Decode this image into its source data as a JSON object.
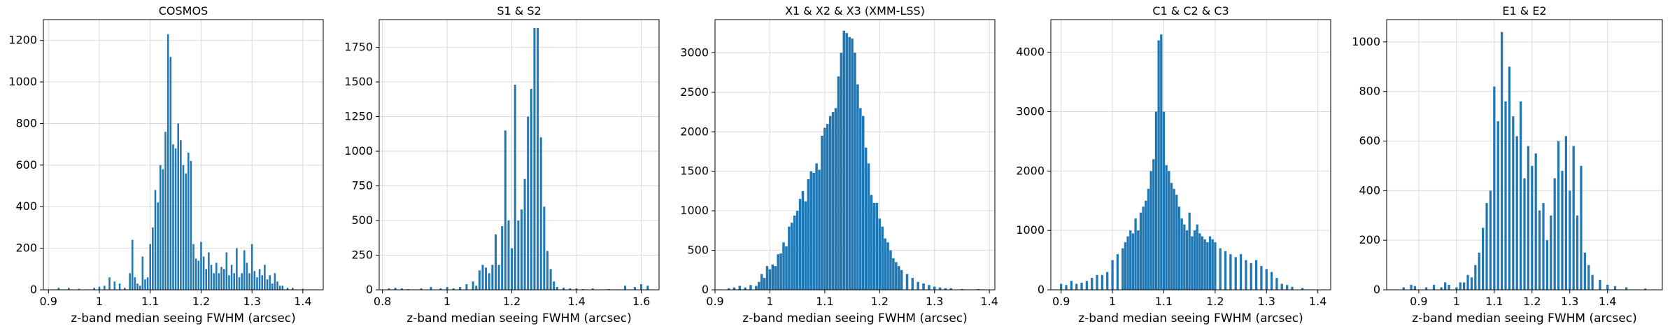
{
  "colors": {
    "bar": "#1f77b4",
    "grid": "#d9d9d9",
    "axis": "#000000"
  },
  "chart_data": [
    {
      "type": "bar",
      "title": "COSMOS",
      "xlabel": "z-band median seeing FWHM (arcsec)",
      "ylabel": "",
      "grid": true,
      "xlim": [
        0.89,
        1.44
      ],
      "ylim": [
        0,
        1300
      ],
      "xticks": [
        0.9,
        1.0,
        1.1,
        1.2,
        1.3,
        1.4
      ],
      "yticks": [
        0,
        200,
        400,
        600,
        800,
        1000,
        1200
      ],
      "bin_width": 0.0035,
      "x": [
        0.92,
        0.94,
        0.96,
        0.99,
        1.0,
        1.01,
        1.02,
        1.03,
        1.04,
        1.05,
        1.06,
        1.065,
        1.07,
        1.075,
        1.08,
        1.085,
        1.09,
        1.095,
        1.1,
        1.105,
        1.11,
        1.115,
        1.12,
        1.125,
        1.13,
        1.135,
        1.14,
        1.145,
        1.15,
        1.155,
        1.16,
        1.165,
        1.17,
        1.175,
        1.18,
        1.185,
        1.19,
        1.195,
        1.2,
        1.205,
        1.21,
        1.215,
        1.22,
        1.225,
        1.23,
        1.235,
        1.24,
        1.245,
        1.25,
        1.255,
        1.26,
        1.265,
        1.27,
        1.275,
        1.28,
        1.285,
        1.29,
        1.295,
        1.3,
        1.305,
        1.31,
        1.315,
        1.32,
        1.325,
        1.33,
        1.335,
        1.34,
        1.345,
        1.35,
        1.355,
        1.36,
        1.37,
        1.38,
        1.4
      ],
      "values": [
        10,
        10,
        5,
        10,
        15,
        20,
        60,
        40,
        30,
        10,
        80,
        240,
        60,
        30,
        20,
        160,
        50,
        60,
        220,
        300,
        480,
        420,
        600,
        580,
        760,
        1230,
        1120,
        700,
        680,
        800,
        720,
        600,
        560,
        660,
        620,
        220,
        150,
        140,
        230,
        160,
        100,
        180,
        120,
        80,
        130,
        80,
        110,
        100,
        180,
        70,
        120,
        80,
        200,
        60,
        80,
        190,
        130,
        80,
        220,
        90,
        60,
        100,
        70,
        120,
        50,
        70,
        30,
        80,
        40,
        20,
        20,
        10,
        10,
        5
      ]
    },
    {
      "type": "bar",
      "title": "S1 & S2",
      "xlabel": "z-band median seeing FWHM (arcsec)",
      "ylabel": "",
      "grid": true,
      "xlim": [
        0.79,
        1.655
      ],
      "ylim": [
        0,
        1950
      ],
      "xticks": [
        0.8,
        1.0,
        1.2,
        1.4,
        1.6
      ],
      "yticks": [
        0,
        250,
        500,
        750,
        1000,
        1250,
        1500,
        1750
      ],
      "bin_width": 0.0065,
      "x": [
        0.82,
        0.84,
        0.86,
        0.88,
        0.92,
        0.95,
        0.98,
        1.0,
        1.02,
        1.04,
        1.06,
        1.08,
        1.09,
        1.1,
        1.11,
        1.12,
        1.13,
        1.14,
        1.15,
        1.16,
        1.17,
        1.18,
        1.19,
        1.2,
        1.21,
        1.22,
        1.23,
        1.24,
        1.25,
        1.26,
        1.27,
        1.28,
        1.29,
        1.3,
        1.31,
        1.32,
        1.33,
        1.34,
        1.36,
        1.38,
        1.4,
        1.42,
        1.45,
        1.5,
        1.55,
        1.58,
        1.6,
        1.62
      ],
      "values": [
        10,
        15,
        10,
        5,
        10,
        20,
        10,
        20,
        10,
        20,
        40,
        60,
        30,
        140,
        180,
        160,
        120,
        180,
        400,
        180,
        460,
        1150,
        500,
        300,
        1480,
        500,
        580,
        800,
        1250,
        1450,
        1890,
        1890,
        1100,
        600,
        280,
        150,
        60,
        20,
        15,
        10,
        10,
        5,
        10,
        5,
        30,
        20,
        40,
        30
      ]
    },
    {
      "type": "bar",
      "title": "X1 & X2 & X3 (XMM-LSS)",
      "xlabel": "z-band median seeing FWHM (arcsec)",
      "ylabel": "",
      "grid": true,
      "xlim": [
        0.9,
        1.41
      ],
      "ylim": [
        0,
        3420
      ],
      "xticks": [
        0.9,
        1.0,
        1.1,
        1.2,
        1.3,
        1.4
      ],
      "yticks": [
        0,
        500,
        1000,
        1500,
        2000,
        2500,
        3000
      ],
      "bin_width": 0.0045,
      "x": [
        0.925,
        0.935,
        0.945,
        0.955,
        0.965,
        0.975,
        0.98,
        0.985,
        0.99,
        0.995,
        1.0,
        1.005,
        1.01,
        1.015,
        1.02,
        1.025,
        1.03,
        1.035,
        1.04,
        1.045,
        1.05,
        1.055,
        1.06,
        1.065,
        1.07,
        1.075,
        1.08,
        1.085,
        1.09,
        1.095,
        1.1,
        1.105,
        1.11,
        1.115,
        1.12,
        1.125,
        1.13,
        1.135,
        1.14,
        1.145,
        1.15,
        1.155,
        1.16,
        1.165,
        1.17,
        1.175,
        1.18,
        1.185,
        1.19,
        1.195,
        1.2,
        1.205,
        1.21,
        1.215,
        1.22,
        1.225,
        1.23,
        1.235,
        1.24,
        1.25,
        1.26,
        1.27,
        1.28,
        1.29,
        1.3,
        1.31,
        1.32,
        1.33,
        1.35,
        1.38
      ],
      "values": [
        20,
        30,
        50,
        30,
        60,
        50,
        100,
        200,
        150,
        300,
        260,
        320,
        300,
        450,
        460,
        600,
        550,
        800,
        850,
        940,
        1000,
        1150,
        1250,
        1120,
        1400,
        1500,
        1480,
        1600,
        1520,
        1950,
        2050,
        2100,
        2200,
        2250,
        2300,
        2700,
        3000,
        3280,
        3250,
        3200,
        3180,
        3000,
        2600,
        2300,
        2200,
        1800,
        1600,
        1200,
        1100,
        1100,
        900,
        800,
        650,
        600,
        500,
        400,
        350,
        300,
        250,
        200,
        150,
        100,
        80,
        60,
        40,
        30,
        20,
        20,
        10,
        10
      ]
    },
    {
      "type": "bar",
      "title": "C1 & C2 & C3",
      "xlabel": "z-band median seeing FWHM (arcsec)",
      "ylabel": "",
      "grid": true,
      "xlim": [
        0.88,
        1.425
      ],
      "ylim": [
        0,
        4550
      ],
      "xticks": [
        0.9,
        1.0,
        1.1,
        1.2,
        1.3,
        1.4
      ],
      "yticks": [
        0,
        1000,
        2000,
        3000,
        4000
      ],
      "bin_width": 0.0045,
      "x": [
        0.9,
        0.91,
        0.92,
        0.93,
        0.94,
        0.95,
        0.96,
        0.97,
        0.98,
        0.99,
        1.0,
        1.01,
        1.02,
        1.025,
        1.03,
        1.035,
        1.04,
        1.045,
        1.05,
        1.055,
        1.06,
        1.065,
        1.07,
        1.075,
        1.08,
        1.085,
        1.09,
        1.095,
        1.1,
        1.105,
        1.11,
        1.115,
        1.12,
        1.125,
        1.13,
        1.135,
        1.14,
        1.145,
        1.15,
        1.155,
        1.16,
        1.165,
        1.17,
        1.175,
        1.18,
        1.185,
        1.19,
        1.195,
        1.2,
        1.21,
        1.22,
        1.23,
        1.24,
        1.25,
        1.26,
        1.27,
        1.28,
        1.29,
        1.3,
        1.31,
        1.32,
        1.33,
        1.34,
        1.35,
        1.37
      ],
      "values": [
        100,
        80,
        150,
        100,
        120,
        150,
        200,
        250,
        250,
        300,
        500,
        600,
        700,
        800,
        900,
        1000,
        950,
        1200,
        1000,
        1300,
        1400,
        1500,
        1700,
        2000,
        2200,
        3000,
        4200,
        4300,
        3000,
        2100,
        2000,
        1800,
        1700,
        1600,
        1400,
        1200,
        1100,
        1000,
        1300,
        900,
        1000,
        1100,
        950,
        900,
        850,
        800,
        900,
        850,
        800,
        700,
        650,
        600,
        550,
        600,
        500,
        450,
        500,
        400,
        350,
        300,
        200,
        100,
        80,
        50,
        30
      ]
    },
    {
      "type": "bar",
      "title": "E1 & E2",
      "xlabel": "z-band median seeing FWHM (arcsec)",
      "ylabel": "",
      "grid": true,
      "xlim": [
        0.815,
        1.545
      ],
      "ylim": [
        0,
        1090
      ],
      "xticks": [
        0.9,
        1.0,
        1.1,
        1.2,
        1.3,
        1.4
      ],
      "yticks": [
        0,
        200,
        400,
        600,
        800,
        1000
      ],
      "bin_width": 0.006,
      "x": [
        0.86,
        0.88,
        0.89,
        0.92,
        0.94,
        0.96,
        0.97,
        0.98,
        1.0,
        1.01,
        1.02,
        1.03,
        1.04,
        1.05,
        1.06,
        1.07,
        1.08,
        1.09,
        1.1,
        1.11,
        1.12,
        1.13,
        1.14,
        1.15,
        1.16,
        1.17,
        1.18,
        1.19,
        1.2,
        1.21,
        1.22,
        1.23,
        1.24,
        1.25,
        1.26,
        1.27,
        1.28,
        1.29,
        1.3,
        1.31,
        1.32,
        1.33,
        1.34,
        1.35,
        1.36,
        1.38,
        1.4,
        1.42,
        1.45,
        1.5
      ],
      "values": [
        10,
        20,
        15,
        10,
        20,
        10,
        30,
        20,
        10,
        30,
        30,
        60,
        50,
        100,
        150,
        250,
        350,
        400,
        820,
        680,
        1040,
        760,
        900,
        700,
        620,
        760,
        450,
        580,
        500,
        550,
        320,
        350,
        200,
        300,
        450,
        600,
        480,
        620,
        400,
        580,
        300,
        500,
        150,
        100,
        60,
        40,
        20,
        15,
        10,
        5
      ]
    }
  ]
}
